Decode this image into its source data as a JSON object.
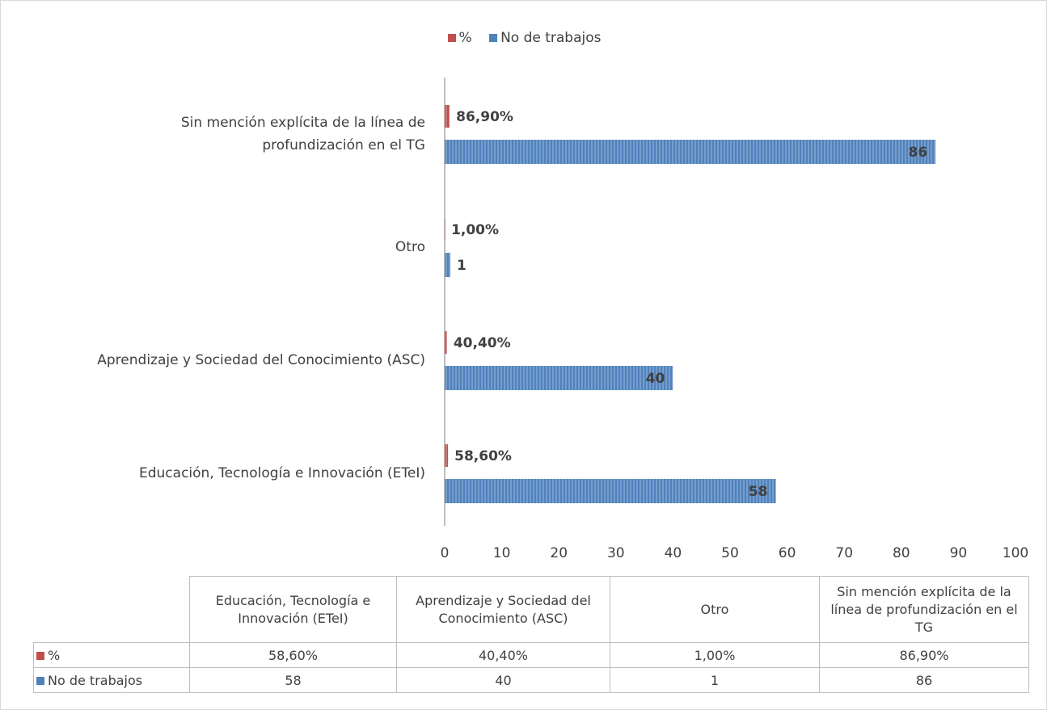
{
  "chart_data": {
    "type": "bar",
    "orientation": "horizontal",
    "categories": [
      "Educación, Tecnología e Innovación (ETeI)",
      "Aprendizaje y Sociedad del Conocimiento (ASC)",
      "Otro",
      "Sin mención explícita de la línea de profundización en el TG"
    ],
    "series": [
      {
        "name": "%",
        "color": "#c0504d",
        "values": [
          0.586,
          0.404,
          0.01,
          0.869
        ],
        "value_labels": [
          "58,60%",
          "40,40%",
          "1,00%",
          "86,90%"
        ]
      },
      {
        "name": "No de trabajos",
        "color": "#4f81bd",
        "values": [
          58,
          40,
          1,
          86
        ]
      }
    ],
    "xlim": [
      0,
      100
    ],
    "xticks": [
      0,
      10,
      20,
      30,
      40,
      50,
      60,
      70,
      80,
      90,
      100
    ],
    "legend": "top",
    "data_table": true
  }
}
